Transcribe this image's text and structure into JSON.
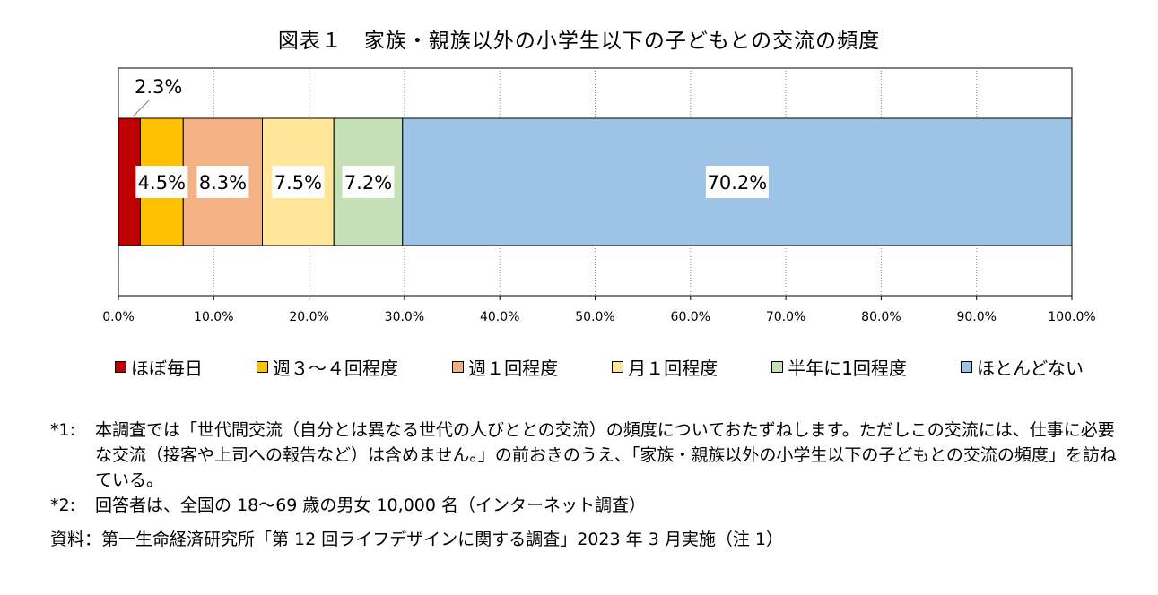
{
  "title": "図表１　家族・親族以外の小学生以下の子どもとの交流の頻度",
  "chart_data": {
    "type": "bar",
    "orientation": "horizontal-stacked-100",
    "categories": [
      ""
    ],
    "xlim": [
      0,
      100
    ],
    "xticks": [
      "0.0%",
      "10.0%",
      "20.0%",
      "30.0%",
      "40.0%",
      "50.0%",
      "60.0%",
      "70.0%",
      "80.0%",
      "90.0%",
      "100.0%"
    ],
    "grid": "vertical-dotted",
    "legend_position": "bottom",
    "series": [
      {
        "name": "ほぼ毎日",
        "value": 2.3,
        "label": "2.3%",
        "color": "#c00000"
      },
      {
        "name": "週３～４回程度",
        "value": 4.5,
        "label": "4.5%",
        "color": "#ffc000"
      },
      {
        "name": "週１回程度",
        "value": 8.3,
        "label": "8.3%",
        "color": "#f4b183"
      },
      {
        "name": "月１回程度",
        "value": 7.5,
        "label": "7.5%",
        "color": "#ffe699"
      },
      {
        "name": "半年に1回程度",
        "value": 7.2,
        "label": "7.2%",
        "color": "#c5e0b4"
      },
      {
        "name": "ほとんどない",
        "value": 70.2,
        "label": "70.2%",
        "color": "#9dc3e6"
      }
    ]
  },
  "notes": [
    {
      "mark": "*1:",
      "text": "本調査では「世代間交流（自分とは異なる世代の人びととの交流）の頻度についておたずねします。ただしこの交流には、仕事に必要な交流（接客や上司への報告など）は含めません。」の前おきのうえ、「家族・親族以外の小学生以下の子どもとの交流の頻度」を訪ねている。"
    },
    {
      "mark": "*2:",
      "text": "回答者は、全国の 18～69 歳の男女 10,000 名（インターネット調査）"
    }
  ],
  "source": "資料：第一生命経済研究所「第 12 回ライフデザインに関する調査」2023 年 3 月実施（注 1）"
}
